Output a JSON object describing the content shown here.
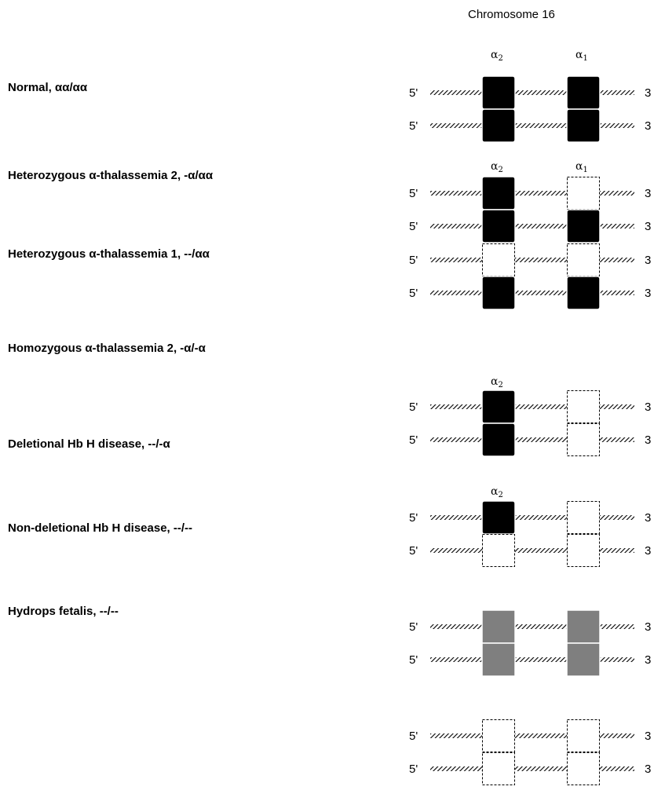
{
  "title": "Chromosome 16",
  "end5": "5'",
  "end3": "3",
  "gene_alpha2": "α",
  "gene_alpha2_sub": "2",
  "gene_alpha1": "α",
  "gene_alpha1_sub": "1",
  "colors": {
    "present": "#000000",
    "hydrops": "#7f7f7f",
    "deleted_stroke": "#000000"
  },
  "genotypes": [
    {
      "label": "Normal, αα/αα",
      "strands": [
        [
          "present",
          "present"
        ],
        [
          "present",
          "present"
        ]
      ],
      "gene_labels": [
        "a2",
        "a1"
      ]
    },
    {
      "label": "Heterozygous α-thalassemia 2, -α/αα",
      "strands": [
        [
          "present",
          "deleted"
        ],
        [
          "present",
          "present"
        ]
      ],
      "gene_labels": [
        "a2",
        "a1"
      ]
    },
    {
      "label": "Heterozygous α-thalassemia 1, --/αα",
      "strands": [
        [
          "deleted",
          "deleted"
        ],
        [
          "present",
          "present"
        ]
      ],
      "gene_labels": [
        "a2",
        "a1"
      ]
    },
    {
      "label": "Homozygous α-thalassemia 2, -α/-α",
      "strands": [
        [
          "present",
          "deleted"
        ],
        [
          "present",
          "deleted"
        ]
      ],
      "gene_labels": [
        "a2"
      ]
    },
    {
      "label": "Deletional Hb H disease, --/-α",
      "strands": [
        [
          "present",
          "deleted"
        ],
        [
          "deleted",
          "deleted"
        ]
      ],
      "gene_labels": [
        "a2"
      ]
    },
    {
      "label": "Non-deletional Hb H disease, --/--",
      "strands": [
        [
          "hydrops",
          "hydrops"
        ],
        [
          "hydrops",
          "hydrops"
        ]
      ],
      "gene_labels": []
    },
    {
      "label": "Hydrops fetalis, --/--",
      "strands": [
        [
          "deleted",
          "deleted"
        ],
        [
          "deleted",
          "deleted"
        ]
      ],
      "gene_labels": []
    }
  ]
}
